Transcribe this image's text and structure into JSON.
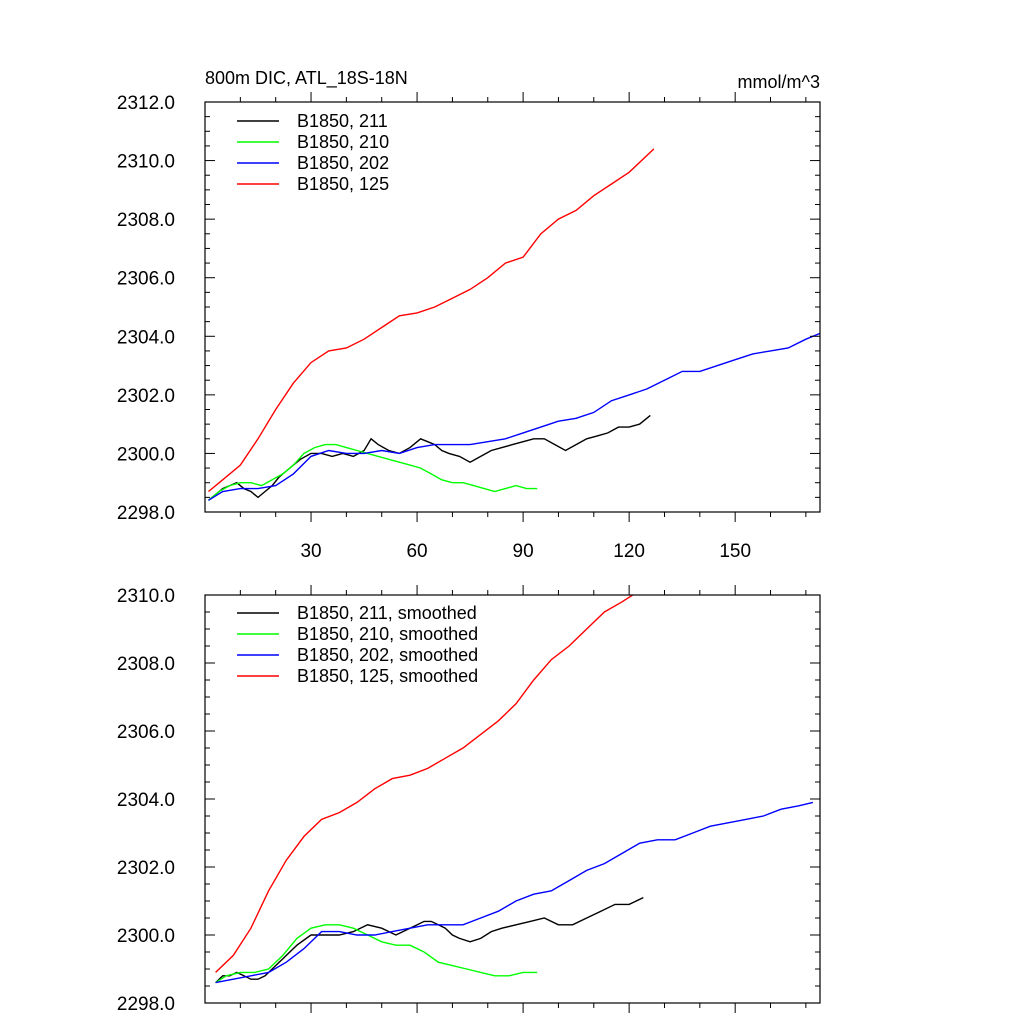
{
  "chart_data": [
    {
      "type": "line",
      "title_left": "800m DIC, ATL_18S-18N",
      "title_right": "mmol/m^3",
      "xlim": [
        0,
        174
      ],
      "ylim": [
        2298.0,
        2312.0
      ],
      "xticks": [
        30,
        60,
        90,
        120,
        150
      ],
      "xtick_labels": [
        "30",
        "60",
        "90",
        "120",
        "150"
      ],
      "yticks": [
        2298,
        2300,
        2302,
        2304,
        2306,
        2308,
        2310,
        2312
      ],
      "ytick_labels": [
        "2298.0",
        "2300.0",
        "2302.0",
        "2304.0",
        "2306.0",
        "2308.0",
        "2310.0",
        "2312.0"
      ],
      "legend_position": "top-left",
      "series": [
        {
          "name": "B1850, 211",
          "color": "#000000",
          "x": [
            1,
            3,
            5,
            7,
            9,
            11,
            13,
            15,
            17,
            19,
            21,
            23,
            25,
            27,
            30,
            33,
            36,
            39,
            42,
            45,
            47,
            49,
            52,
            55,
            58,
            61,
            63,
            65,
            67,
            69,
            72,
            75,
            78,
            81,
            84,
            87,
            90,
            93,
            96,
            99,
            102,
            105,
            108,
            111,
            114,
            117,
            120,
            123,
            126
          ],
          "y": [
            2298.4,
            2298.6,
            2298.8,
            2298.9,
            2299.0,
            2298.8,
            2298.7,
            2298.5,
            2298.7,
            2298.9,
            2299.2,
            2299.4,
            2299.6,
            2299.8,
            2300.0,
            2300.0,
            2299.9,
            2300.0,
            2299.9,
            2300.1,
            2300.5,
            2300.3,
            2300.1,
            2300.0,
            2300.2,
            2300.5,
            2300.4,
            2300.3,
            2300.1,
            2300.0,
            2299.9,
            2299.7,
            2299.9,
            2300.1,
            2300.2,
            2300.3,
            2300.4,
            2300.5,
            2300.5,
            2300.3,
            2300.1,
            2300.3,
            2300.5,
            2300.6,
            2300.7,
            2300.9,
            2300.9,
            2301.0,
            2301.3
          ]
        },
        {
          "name": "B1850, 210",
          "color": "#00ff00",
          "x": [
            1,
            4,
            7,
            10,
            13,
            16,
            19,
            22,
            25,
            28,
            31,
            34,
            37,
            40,
            43,
            46,
            49,
            52,
            55,
            58,
            61,
            64,
            67,
            70,
            73,
            76,
            79,
            82,
            85,
            88,
            91,
            94
          ],
          "y": [
            2298.4,
            2298.7,
            2298.9,
            2299.0,
            2299.0,
            2298.9,
            2299.1,
            2299.3,
            2299.6,
            2300.0,
            2300.2,
            2300.3,
            2300.3,
            2300.2,
            2300.1,
            2300.0,
            2299.9,
            2299.8,
            2299.7,
            2299.6,
            2299.5,
            2299.3,
            2299.1,
            2299.0,
            2299.0,
            2298.9,
            2298.8,
            2298.7,
            2298.8,
            2298.9,
            2298.8,
            2298.8
          ]
        },
        {
          "name": "B1850, 202",
          "color": "#0000ff",
          "x": [
            1,
            5,
            10,
            15,
            20,
            25,
            30,
            35,
            40,
            45,
            50,
            55,
            60,
            65,
            70,
            75,
            80,
            85,
            90,
            95,
            100,
            105,
            110,
            115,
            120,
            125,
            130,
            135,
            140,
            145,
            150,
            155,
            160,
            165,
            170,
            174
          ],
          "y": [
            2298.4,
            2298.7,
            2298.8,
            2298.8,
            2298.9,
            2299.3,
            2299.9,
            2300.1,
            2300.0,
            2300.0,
            2300.1,
            2300.0,
            2300.2,
            2300.3,
            2300.3,
            2300.3,
            2300.4,
            2300.5,
            2300.7,
            2300.9,
            2301.1,
            2301.2,
            2301.4,
            2301.8,
            2302.0,
            2302.2,
            2302.5,
            2302.8,
            2302.8,
            2303.0,
            2303.2,
            2303.4,
            2303.5,
            2303.6,
            2303.9,
            2304.1
          ]
        },
        {
          "name": "B1850, 125",
          "color": "#ff0000",
          "x": [
            1,
            5,
            10,
            15,
            20,
            25,
            30,
            35,
            40,
            45,
            50,
            55,
            60,
            65,
            70,
            75,
            80,
            85,
            90,
            95,
            100,
            105,
            110,
            115,
            120,
            127
          ],
          "y": [
            2298.7,
            2299.1,
            2299.6,
            2300.5,
            2301.5,
            2302.4,
            2303.1,
            2303.5,
            2303.6,
            2303.9,
            2304.3,
            2304.7,
            2304.8,
            2305.0,
            2305.3,
            2305.6,
            2306.0,
            2306.5,
            2306.7,
            2307.5,
            2308.0,
            2308.3,
            2308.8,
            2309.2,
            2309.6,
            2310.4
          ]
        }
      ]
    },
    {
      "type": "line",
      "xlim": [
        0,
        174
      ],
      "ylim": [
        2298.0,
        2310.0
      ],
      "xticks": [
        30,
        60,
        90,
        120,
        150
      ],
      "yticks": [
        2298,
        2300,
        2302,
        2304,
        2306,
        2308,
        2310
      ],
      "ytick_labels": [
        "2298.0",
        "2300.0",
        "2302.0",
        "2304.0",
        "2306.0",
        "2308.0",
        "2310.0"
      ],
      "legend_position": "top-left",
      "series": [
        {
          "name": "B1850, 211, smoothed",
          "color": "#000000",
          "x": [
            3,
            5,
            7,
            9,
            11,
            13,
            15,
            17,
            20,
            23,
            26,
            30,
            34,
            38,
            42,
            46,
            50,
            54,
            58,
            62,
            64,
            66,
            68,
            70,
            72,
            75,
            78,
            81,
            84,
            88,
            92,
            96,
            100,
            104,
            108,
            112,
            116,
            120,
            124
          ],
          "y": [
            2298.6,
            2298.8,
            2298.8,
            2298.9,
            2298.8,
            2298.7,
            2298.7,
            2298.8,
            2299.1,
            2299.4,
            2299.7,
            2300.0,
            2300.0,
            2300.0,
            2300.1,
            2300.3,
            2300.2,
            2300.0,
            2300.2,
            2300.4,
            2300.4,
            2300.3,
            2300.2,
            2300.0,
            2299.9,
            2299.8,
            2299.9,
            2300.1,
            2300.2,
            2300.3,
            2300.4,
            2300.5,
            2300.3,
            2300.3,
            2300.5,
            2300.7,
            2300.9,
            2300.9,
            2301.1
          ]
        },
        {
          "name": "B1850, 210, smoothed",
          "color": "#00ff00",
          "x": [
            3,
            6,
            10,
            14,
            18,
            22,
            26,
            30,
            34,
            38,
            42,
            46,
            50,
            54,
            58,
            62,
            66,
            70,
            74,
            78,
            82,
            86,
            90,
            94
          ],
          "y": [
            2298.6,
            2298.8,
            2298.9,
            2298.9,
            2299.0,
            2299.4,
            2299.9,
            2300.2,
            2300.3,
            2300.3,
            2300.2,
            2300.0,
            2299.8,
            2299.7,
            2299.7,
            2299.5,
            2299.2,
            2299.1,
            2299.0,
            2298.9,
            2298.8,
            2298.8,
            2298.9,
            2298.9
          ]
        },
        {
          "name": "B1850, 202, smoothed",
          "color": "#0000ff",
          "x": [
            3,
            8,
            13,
            18,
            23,
            28,
            33,
            38,
            43,
            48,
            53,
            58,
            63,
            68,
            73,
            78,
            83,
            88,
            93,
            98,
            103,
            108,
            113,
            118,
            123,
            128,
            133,
            138,
            143,
            148,
            153,
            158,
            163,
            168,
            172
          ],
          "y": [
            2298.6,
            2298.7,
            2298.8,
            2298.9,
            2299.2,
            2299.6,
            2300.1,
            2300.1,
            2300.0,
            2300.0,
            2300.1,
            2300.2,
            2300.3,
            2300.3,
            2300.3,
            2300.5,
            2300.7,
            2301.0,
            2301.2,
            2301.3,
            2301.6,
            2301.9,
            2302.1,
            2302.4,
            2302.7,
            2302.8,
            2302.8,
            2303.0,
            2303.2,
            2303.3,
            2303.4,
            2303.5,
            2303.7,
            2303.8,
            2303.9
          ]
        },
        {
          "name": "B1850, 125, smoothed",
          "color": "#ff0000",
          "x": [
            3,
            8,
            13,
            18,
            23,
            28,
            33,
            38,
            43,
            48,
            53,
            58,
            63,
            68,
            73,
            78,
            83,
            88,
            93,
            98,
            103,
            108,
            113,
            118,
            121
          ],
          "y": [
            2298.9,
            2299.4,
            2300.2,
            2301.3,
            2302.2,
            2302.9,
            2303.4,
            2303.6,
            2303.9,
            2304.3,
            2304.6,
            2304.7,
            2304.9,
            2305.2,
            2305.5,
            2305.9,
            2306.3,
            2306.8,
            2307.5,
            2308.1,
            2308.5,
            2309.0,
            2309.5,
            2309.8,
            2310.0
          ]
        }
      ]
    }
  ]
}
